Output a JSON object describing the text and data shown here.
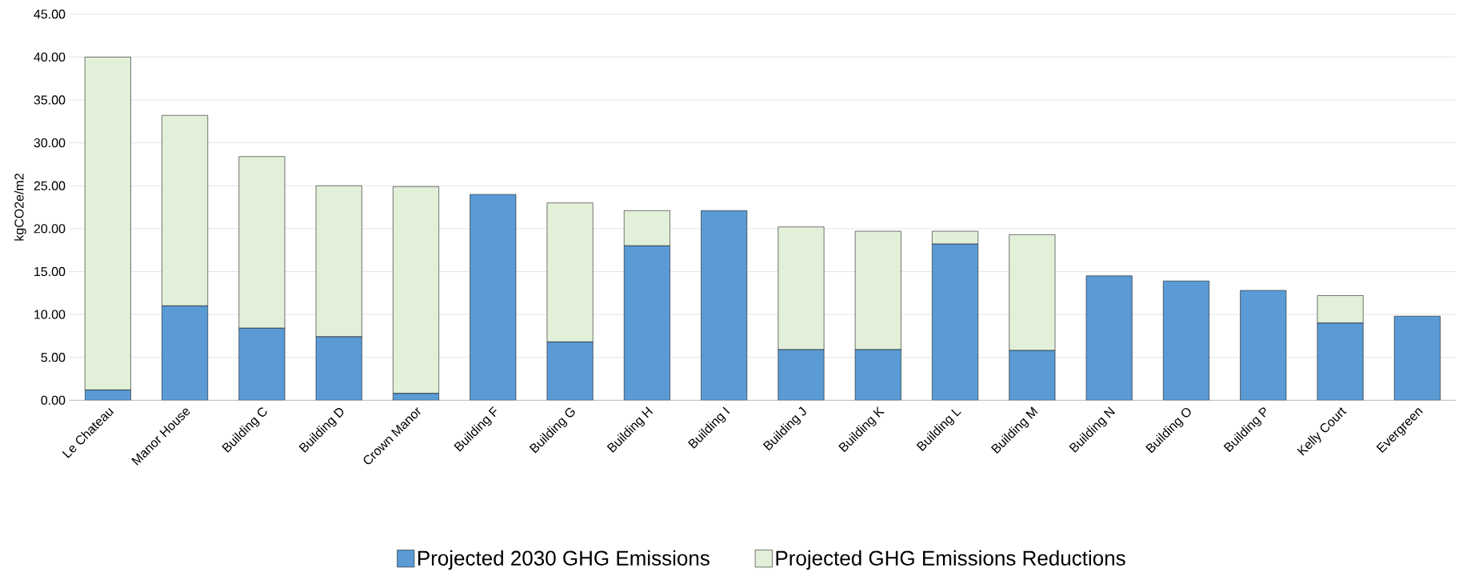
{
  "chart_data": {
    "type": "bar",
    "stacked": true,
    "ylabel": "kgCO2e/m2",
    "categories": [
      "Le Chateau",
      "Manor House",
      "Building C",
      "Building D",
      "Crown Manor",
      "Building F",
      "Building G",
      "Building H",
      "Building I",
      "Building J",
      "Building K",
      "Building L",
      "Building M",
      "Building N",
      "Building O",
      "Building P",
      "Kelly Court",
      "Evergreen"
    ],
    "series": [
      {
        "name": "Projected 2030 GHG Emissions",
        "color": "#5b9bd5",
        "values": [
          1.2,
          11.0,
          8.4,
          7.4,
          0.8,
          24.0,
          6.8,
          18.0,
          22.1,
          5.9,
          5.9,
          18.2,
          5.8,
          14.5,
          13.9,
          12.8,
          9.0,
          9.8
        ]
      },
      {
        "name": "Projected GHG Emissions Reductions",
        "color": "#e2f0d9",
        "values": [
          38.8,
          22.2,
          20.0,
          17.6,
          24.1,
          0,
          16.2,
          4.1,
          0,
          14.3,
          13.8,
          1.5,
          13.5,
          0,
          0,
          0,
          3.2,
          0
        ]
      }
    ],
    "ylim": [
      0,
      45
    ],
    "yticks": [
      {
        "value": 0,
        "label": "0.00"
      },
      {
        "value": 5,
        "label": "5.00"
      },
      {
        "value": 10,
        "label": "10.00"
      },
      {
        "value": 15,
        "label": "15.00"
      },
      {
        "value": 20,
        "label": "20.00"
      },
      {
        "value": 25,
        "label": "25.00"
      },
      {
        "value": 30,
        "label": "30.00"
      },
      {
        "value": 35,
        "label": "35.00"
      },
      {
        "value": 40,
        "label": "40.00"
      },
      {
        "value": 45,
        "label": "45.00"
      }
    ],
    "grid": "y",
    "legend": "bottom"
  }
}
